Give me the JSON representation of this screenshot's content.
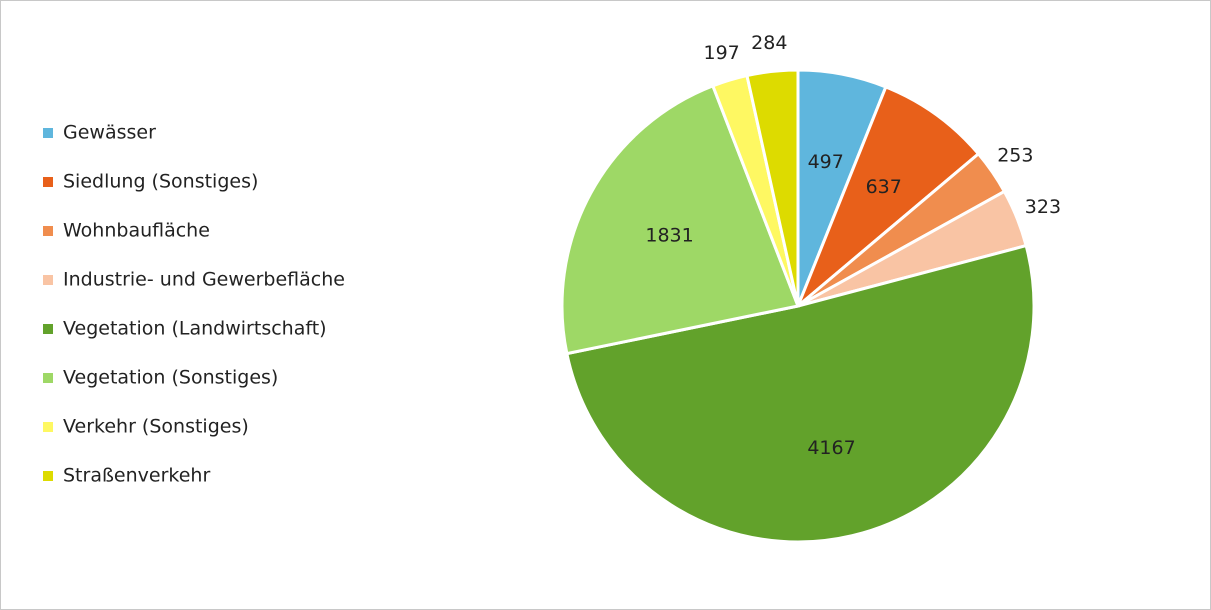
{
  "chart_data": {
    "type": "pie",
    "categories": [
      "Gewässer",
      "Siedlung (Sonstiges)",
      "Wohnbaufläche",
      "Industrie- und Gewerbefläche",
      "Vegetation (Landwirtschaft)",
      "Vegetation (Sonstiges)",
      "Verkehr (Sonstiges)",
      "Straßenverkehr"
    ],
    "values": [
      497,
      637,
      253,
      323,
      4167,
      1831,
      197,
      284
    ],
    "colors": [
      "#5fb6dd",
      "#e8601a",
      "#f08d4e",
      "#f9c4a4",
      "#62a22b",
      "#9ed866",
      "#fef862",
      "#dddb00"
    ],
    "legend": "left"
  }
}
